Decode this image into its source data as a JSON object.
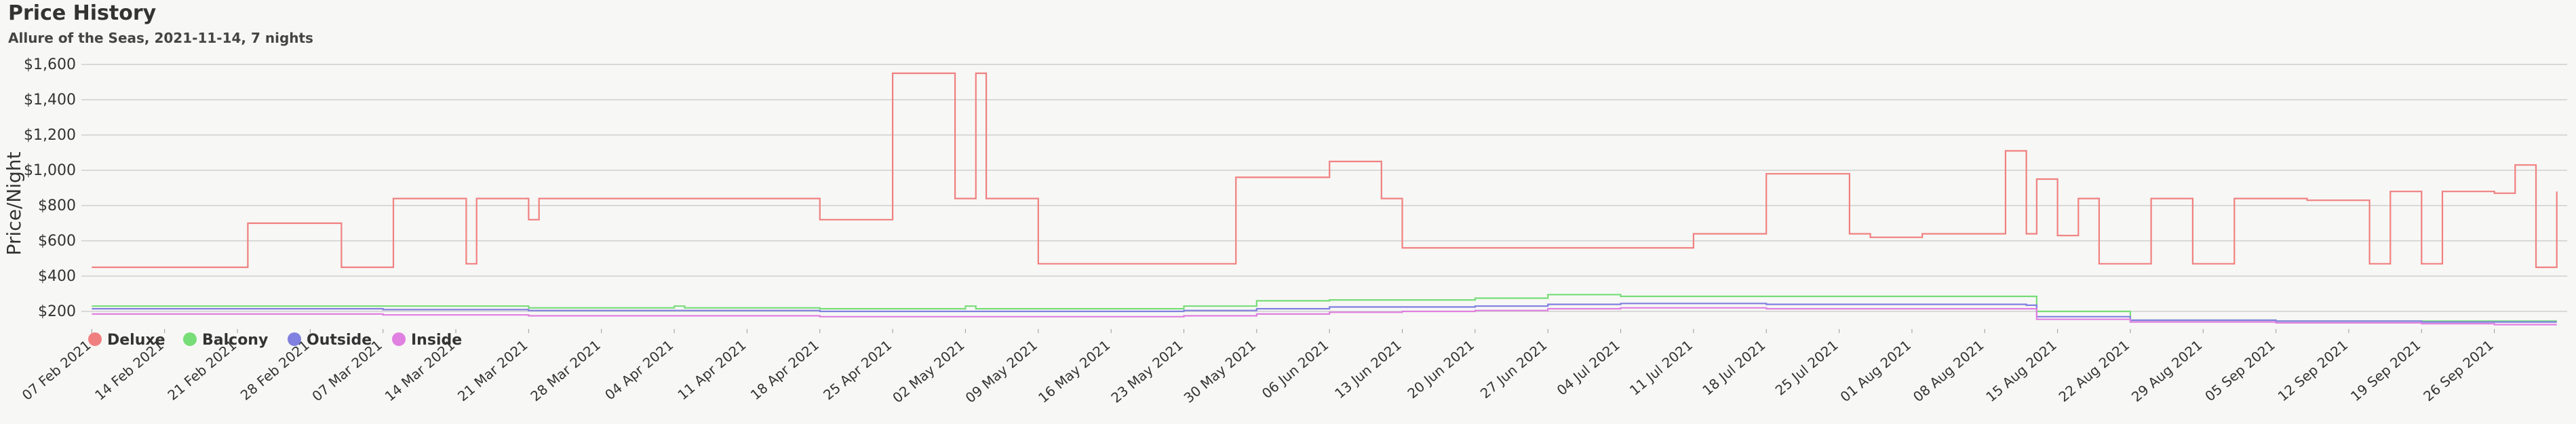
{
  "header": {
    "title": "Price History",
    "subtitle": "Allure of the Seas, 2021-11-14, 7 nights"
  },
  "chart_data": {
    "type": "line",
    "title": "Price History",
    "subtitle": "Allure of the Seas, 2021-11-14, 7 nights",
    "xlabel": "",
    "ylabel": "Price/Night",
    "ylim": [
      100,
      1650
    ],
    "y_ticks": [
      "$200",
      "$400",
      "$600",
      "$800",
      "$1,000",
      "$1,200",
      "$1,400",
      "$1,600"
    ],
    "x_ticks": [
      "07 Feb 2021",
      "14 Feb 2021",
      "21 Feb 2021",
      "28 Feb 2021",
      "07 Mar 2021",
      "14 Mar 2021",
      "21 Mar 2021",
      "28 Mar 2021",
      "04 Apr 2021",
      "11 Apr 2021",
      "18 Apr 2021",
      "25 Apr 2021",
      "02 May 2021",
      "09 May 2021",
      "16 May 2021",
      "23 May 2021",
      "30 May 2021",
      "06 Jun 2021",
      "13 Jun 2021",
      "20 Jun 2021",
      "27 Jun 2021",
      "04 Jul 2021",
      "11 Jul 2021",
      "18 Jul 2021",
      "25 Jul 2021",
      "01 Aug 2021",
      "08 Aug 2021",
      "15 Aug 2021",
      "22 Aug 2021",
      "29 Aug 2021",
      "05 Sep 2021",
      "12 Sep 2021",
      "19 Sep 2021",
      "26 Sep 2021"
    ],
    "grid": true,
    "legend_position": "bottom-left",
    "legend": [
      "Deluxe",
      "Balcony",
      "Outside",
      "Inside"
    ],
    "series": [
      {
        "name": "Deluxe",
        "color": "#f08080",
        "x": [
          "2021-02-07",
          "2021-02-21",
          "2021-02-22",
          "2021-03-03",
          "2021-03-07",
          "2021-03-08",
          "2021-03-14",
          "2021-03-15",
          "2021-03-16",
          "2021-03-21",
          "2021-03-22",
          "2021-04-11",
          "2021-04-18",
          "2021-04-25",
          "2021-05-01",
          "2021-05-03",
          "2021-05-04",
          "2021-05-06",
          "2021-05-09",
          "2021-05-28",
          "2021-06-06",
          "2021-06-09",
          "2021-06-11",
          "2021-06-13",
          "2021-06-14",
          "2021-07-11",
          "2021-07-18",
          "2021-07-26",
          "2021-07-28",
          "2021-08-01",
          "2021-08-02",
          "2021-08-05",
          "2021-08-10",
          "2021-08-12",
          "2021-08-13",
          "2021-08-15",
          "2021-08-17",
          "2021-08-19",
          "2021-08-22",
          "2021-08-24",
          "2021-08-28",
          "2021-08-31",
          "2021-09-01",
          "2021-09-08",
          "2021-09-10",
          "2021-09-14",
          "2021-09-16",
          "2021-09-19",
          "2021-09-21",
          "2021-09-24",
          "2021-09-26",
          "2021-09-28",
          "2021-09-30",
          "2021-10-02"
        ],
        "values": [
          450,
          450,
          700,
          450,
          450,
          840,
          840,
          470,
          840,
          720,
          840,
          840,
          720,
          1550,
          840,
          1550,
          840,
          840,
          470,
          960,
          1050,
          1050,
          840,
          560,
          560,
          640,
          980,
          640,
          620,
          620,
          640,
          640,
          1110,
          640,
          950,
          630,
          840,
          470,
          470,
          840,
          470,
          470,
          840,
          830,
          830,
          470,
          880,
          470,
          880,
          880,
          870,
          1030,
          450,
          880
        ]
      },
      {
        "name": "Balcony",
        "color": "#77dd77",
        "x": [
          "2021-02-07",
          "2021-02-21",
          "2021-03-07",
          "2021-03-21",
          "2021-04-04",
          "2021-04-05",
          "2021-04-18",
          "2021-05-02",
          "2021-05-03",
          "2021-05-16",
          "2021-05-23",
          "2021-05-30",
          "2021-06-06",
          "2021-06-13",
          "2021-06-20",
          "2021-06-27",
          "2021-07-04",
          "2021-07-11",
          "2021-07-18",
          "2021-07-25",
          "2021-08-01",
          "2021-08-08",
          "2021-08-12",
          "2021-08-13",
          "2021-08-15",
          "2021-08-22",
          "2021-08-29",
          "2021-09-05",
          "2021-09-12",
          "2021-09-19",
          "2021-09-26",
          "2021-10-02"
        ],
        "values": [
          230,
          230,
          230,
          220,
          230,
          220,
          215,
          230,
          215,
          215,
          230,
          260,
          265,
          265,
          275,
          295,
          285,
          285,
          285,
          285,
          285,
          285,
          285,
          200,
          200,
          150,
          150,
          145,
          145,
          145,
          145,
          145
        ]
      },
      {
        "name": "Outside",
        "color": "#8080e0",
        "x": [
          "2021-02-07",
          "2021-02-21",
          "2021-03-07",
          "2021-03-21",
          "2021-04-04",
          "2021-04-18",
          "2021-05-02",
          "2021-05-16",
          "2021-05-23",
          "2021-05-30",
          "2021-06-06",
          "2021-06-13",
          "2021-06-20",
          "2021-06-27",
          "2021-07-04",
          "2021-07-11",
          "2021-07-18",
          "2021-07-25",
          "2021-08-01",
          "2021-08-08",
          "2021-08-12",
          "2021-08-13",
          "2021-08-15",
          "2021-08-22",
          "2021-08-29",
          "2021-09-05",
          "2021-09-12",
          "2021-09-19",
          "2021-09-26",
          "2021-10-02"
        ],
        "values": [
          215,
          215,
          210,
          205,
          205,
          200,
          200,
          200,
          205,
          215,
          225,
          225,
          230,
          240,
          245,
          245,
          240,
          240,
          240,
          240,
          235,
          170,
          170,
          150,
          150,
          145,
          145,
          140,
          140,
          140
        ]
      },
      {
        "name": "Inside",
        "color": "#e080e0",
        "x": [
          "2021-02-07",
          "2021-02-21",
          "2021-03-07",
          "2021-03-21",
          "2021-04-04",
          "2021-04-18",
          "2021-05-02",
          "2021-05-16",
          "2021-05-23",
          "2021-05-30",
          "2021-06-06",
          "2021-06-13",
          "2021-06-20",
          "2021-06-27",
          "2021-07-04",
          "2021-07-11",
          "2021-07-18",
          "2021-07-25",
          "2021-08-01",
          "2021-08-08",
          "2021-08-12",
          "2021-08-13",
          "2021-08-15",
          "2021-08-22",
          "2021-08-29",
          "2021-09-05",
          "2021-09-12",
          "2021-09-19",
          "2021-09-26",
          "2021-10-02"
        ],
        "values": [
          185,
          185,
          180,
          175,
          175,
          170,
          170,
          170,
          175,
          185,
          195,
          200,
          205,
          215,
          220,
          220,
          215,
          215,
          215,
          215,
          215,
          155,
          155,
          140,
          140,
          135,
          135,
          130,
          125,
          125
        ]
      }
    ]
  }
}
